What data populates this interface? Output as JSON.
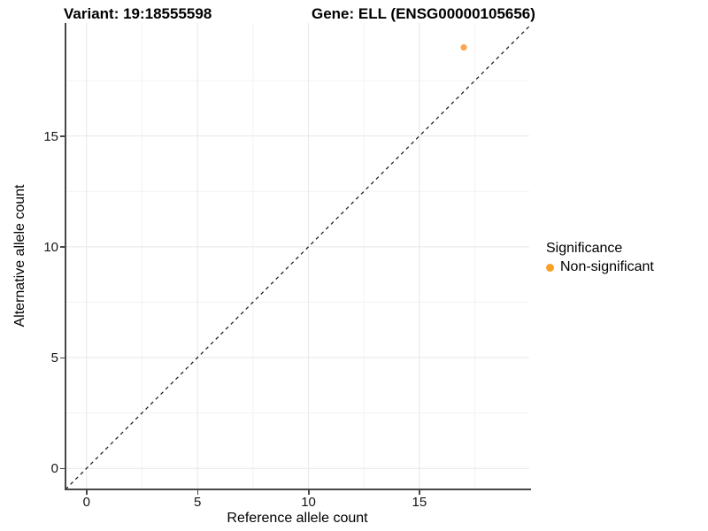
{
  "titles": {
    "variant": "Variant: 19:18555598",
    "gene": "Gene: ELL (ENSG00000105656)"
  },
  "chart_data": {
    "type": "scatter",
    "title_left": "Variant: 19:18555598",
    "title_right": "Gene: ELL (ENSG00000105656)",
    "xlabel": "Reference allele count",
    "ylabel": "Alternative allele count",
    "xlim": [
      -0.95,
      19.95
    ],
    "ylim": [
      -0.95,
      20.1
    ],
    "x_ticks": [
      0,
      5,
      10,
      15
    ],
    "y_ticks": [
      0,
      5,
      10,
      15
    ],
    "x_minor_ticks": [
      2.5,
      7.5,
      12.5,
      17.5
    ],
    "y_minor_ticks": [
      2.5,
      7.5,
      12.5,
      17.5
    ],
    "grid": true,
    "grid_major_color": "#e7e7e7",
    "grid_minor_color": "#f2f2f2",
    "reference_line": {
      "kind": "identity",
      "slope": 1,
      "intercept": 0,
      "style": "dashed",
      "color": "#141414"
    },
    "series": [
      {
        "name": "Non-significant",
        "color": "#FAA74E",
        "points": [
          {
            "x": 17,
            "y": 19
          }
        ]
      }
    ],
    "legend": {
      "position": "right",
      "title": "Significance",
      "items": [
        {
          "label": "Non-significant",
          "color": "#F9A125"
        }
      ]
    }
  }
}
